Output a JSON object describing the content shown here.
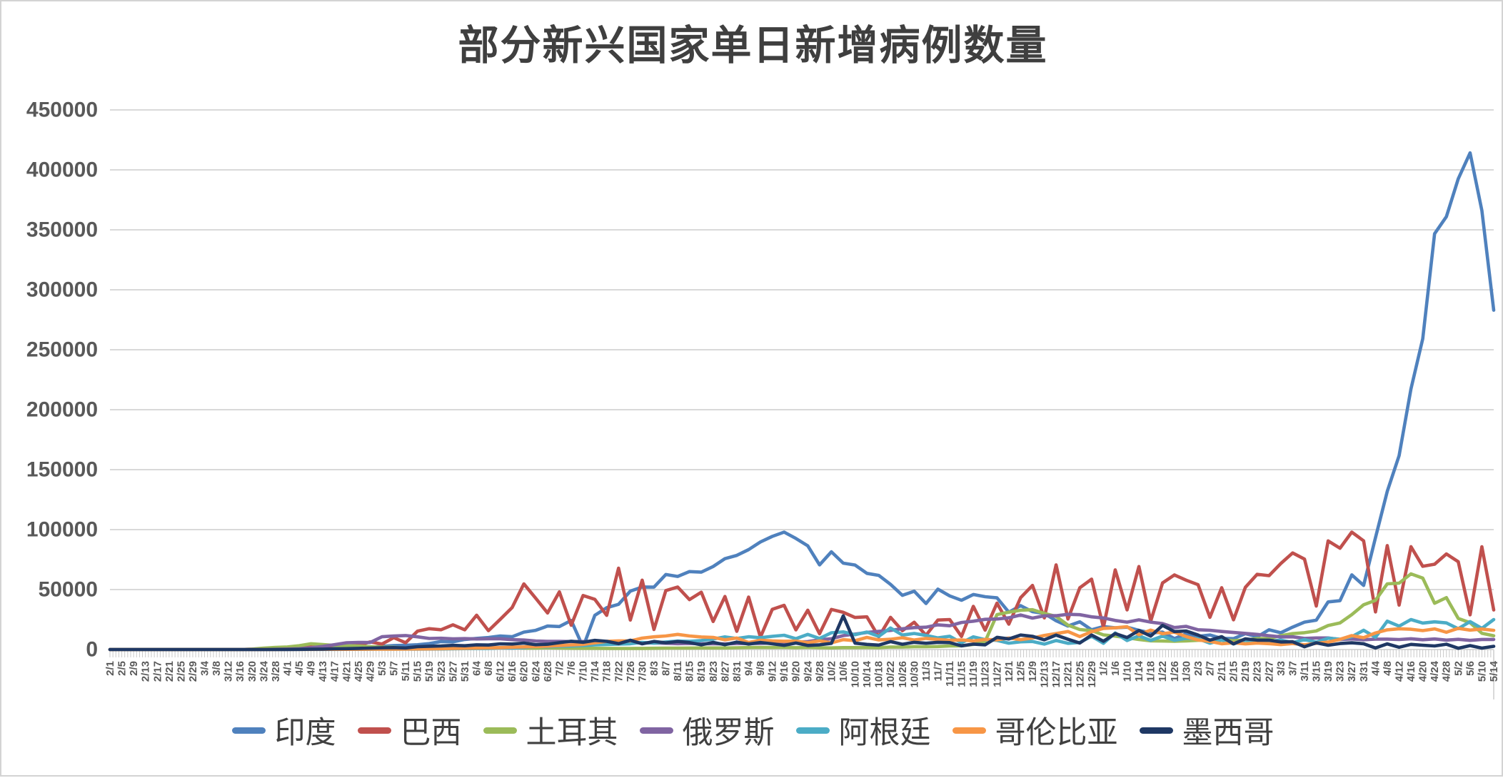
{
  "title": "部分新兴国家单日新增病例数量",
  "y_axis": {
    "ticks": [
      "450000",
      "400000",
      "350000",
      "300000",
      "250000",
      "200000",
      "150000",
      "100000",
      "50000",
      "0"
    ]
  },
  "colors": {
    "grid": "#D9D9D9",
    "tick": "#C9C9C9",
    "axis_text": "#595959"
  },
  "chart_data": {
    "type": "line",
    "title": "部分新兴国家单日新增病例数量",
    "xlabel": "",
    "ylabel": "",
    "ylim": [
      0,
      450000
    ],
    "y_step": 50000,
    "grid": true,
    "legend_position": "bottom",
    "x_labels": [
      "2/1",
      "2/5",
      "2/9",
      "2/13",
      "2/17",
      "2/21",
      "2/25",
      "2/29",
      "3/4",
      "3/8",
      "3/12",
      "3/16",
      "3/20",
      "3/24",
      "3/28",
      "4/1",
      "4/5",
      "4/9",
      "4/13",
      "4/17",
      "4/21",
      "4/25",
      "4/29",
      "5/3",
      "5/7",
      "5/11",
      "5/15",
      "5/19",
      "5/23",
      "5/27",
      "5/31",
      "6/4",
      "6/8",
      "6/12",
      "6/16",
      "6/20",
      "6/24",
      "6/28",
      "7/2",
      "7/6",
      "7/10",
      "7/14",
      "7/18",
      "7/22",
      "7/26",
      "7/30",
      "8/3",
      "8/7",
      "8/11",
      "8/15",
      "8/19",
      "8/23",
      "8/27",
      "8/31",
      "9/4",
      "9/8",
      "9/12",
      "9/16",
      "9/20",
      "9/24",
      "9/28",
      "10/2",
      "10/6",
      "10/10",
      "10/14",
      "10/18",
      "10/22",
      "10/26",
      "10/30",
      "11/3",
      "11/7",
      "11/11",
      "11/15",
      "11/19",
      "11/23",
      "11/27",
      "12/1",
      "12/5",
      "12/9",
      "12/13",
      "12/17",
      "12/21",
      "12/25",
      "12/29",
      "1/2",
      "1/6",
      "1/10",
      "1/14",
      "1/18",
      "1/22",
      "1/26",
      "1/30",
      "2/3",
      "2/7",
      "2/11",
      "2/15",
      "2/19",
      "2/23",
      "2/27",
      "3/3",
      "3/7",
      "3/11",
      "3/15",
      "3/19",
      "3/23",
      "3/27",
      "3/31",
      "4/4",
      "4/8",
      "4/12",
      "4/16",
      "4/20",
      "4/24",
      "4/28",
      "5/2",
      "5/6",
      "5/10",
      "5/14"
    ],
    "series": [
      {
        "name": "印度",
        "color": "#4F81BD",
        "values": [
          0,
          0,
          0,
          0,
          0,
          0,
          1,
          2,
          5,
          5,
          10,
          20,
          60,
          100,
          150,
          400,
          700,
          850,
          1250,
          1100,
          1540,
          1840,
          1900,
          2600,
          3340,
          3600,
          3970,
          4970,
          6660,
          6390,
          8380,
          9300,
          9990,
          11300,
          10670,
          14520,
          16000,
          19600,
          19150,
          24250,
          2000,
          28500,
          34900,
          37700,
          48700,
          52120,
          52050,
          62540,
          60960,
          65000,
          64530,
          69240,
          75760,
          78510,
          83340,
          89710,
          94370,
          97890,
          92600,
          86510,
          70590,
          81480,
          72050,
          70500,
          63510,
          61870,
          54370,
          45150,
          48650,
          38310,
          50360,
          44680,
          41100,
          45880,
          44060,
          43080,
          31120,
          36590,
          31520,
          30050,
          24010,
          19560,
          23070,
          16430,
          19080,
          18090,
          18650,
          16000,
          13790,
          14540,
          9100,
          13080,
          11040,
          12140,
          9310,
          9120,
          13190,
          10580,
          16490,
          14000,
          18710,
          22850,
          24440,
          39730,
          40710,
          62260,
          53480,
          93250,
          131900,
          161740,
          217350,
          259170,
          346790,
          360960,
          392490,
          414190,
          366160,
          283000
        ]
      },
      {
        "name": "巴西",
        "color": "#C0504D",
        "values": [
          0,
          0,
          0,
          0,
          0,
          0,
          0,
          0,
          0,
          20,
          30,
          30,
          300,
          310,
          500,
          1120,
          1220,
          2210,
          1260,
          3700,
          2500,
          3500,
          6300,
          4600,
          9890,
          5630,
          15300,
          17400,
          16500,
          20600,
          16400,
          28630,
          15700,
          25180,
          34920,
          54770,
          42730,
          30480,
          48100,
          20230,
          45050,
          41860,
          28530,
          67860,
          24580,
          57840,
          16640,
          49180,
          52160,
          41580,
          47780,
          23420,
          44240,
          15190,
          43770,
          10270,
          33520,
          36820,
          16390,
          32810,
          13160,
          33430,
          31000,
          26750,
          27240,
          10580,
          26870,
          15730,
          22720,
          11840,
          24610,
          25010,
          10880,
          36000,
          16210,
          38670,
          21140,
          43210,
          53450,
          26360,
          70570,
          25440,
          51490,
          58720,
          18480,
          66400,
          33040,
          69200,
          23670,
          55560,
          62230,
          57790,
          54100,
          26840,
          51550,
          24760,
          51880,
          62720,
          61600,
          71700,
          80510,
          75410,
          36240,
          90570,
          84490,
          97900,
          90640,
          31360,
          86650,
          37010,
          85770,
          69380,
          71130,
          79730,
          73300,
          28930,
          85700,
          33000
        ]
      },
      {
        "name": "土耳其",
        "color": "#9BBB59",
        "values": [
          0,
          0,
          0,
          0,
          0,
          0,
          0,
          0,
          0,
          0,
          1,
          20,
          360,
          1200,
          1700,
          2150,
          3130,
          4800,
          4100,
          3370,
          3080,
          2860,
          2390,
          1980,
          1850,
          1110,
          1640,
          970,
          1190,
          1040,
          840,
          990,
          990,
          1460,
          1470,
          1250,
          1270,
          1350,
          1190,
          1090,
          1000,
          990,
          930,
          900,
          920,
          980,
          1080,
          1190,
          1180,
          1230,
          1300,
          1310,
          1310,
          1480,
          1640,
          1760,
          1670,
          1770,
          1520,
          1770,
          1510,
          1390,
          1610,
          1580,
          1690,
          1560,
          2100,
          2010,
          2300,
          2340,
          2510,
          3000,
          3080,
          4200,
          6710,
          29130,
          31210,
          32740,
          33200,
          30110,
          27610,
          20320,
          16640,
          15800,
          12200,
          11180,
          9810,
          8310,
          7280,
          7100,
          6930,
          7210,
          7660,
          7940,
          8000,
          7300,
          8000,
          9110,
          9200,
          11520,
          13300,
          14050,
          15500,
          20000,
          22220,
          29100,
          37300,
          41000,
          54740,
          55330,
          63080,
          59600,
          38550,
          43300,
          25980,
          22390,
          13600,
          11500
        ]
      },
      {
        "name": "俄罗斯",
        "color": "#8064A2",
        "values": [
          0,
          0,
          0,
          0,
          0,
          0,
          0,
          0,
          0,
          0,
          5,
          30,
          50,
          70,
          150,
          440,
          660,
          1460,
          2560,
          4070,
          5640,
          5960,
          5840,
          10630,
          11230,
          11660,
          10600,
          9200,
          9430,
          8920,
          9090,
          8830,
          8990,
          8990,
          8200,
          7900,
          7170,
          6800,
          6760,
          6610,
          6640,
          6540,
          6110,
          5850,
          5780,
          5510,
          5390,
          5240,
          4890,
          5060,
          4790,
          4850,
          4710,
          4980,
          5010,
          5100,
          5450,
          5670,
          6150,
          6600,
          8130,
          9000,
          11620,
          12850,
          14230,
          15100,
          15970,
          17350,
          18280,
          18650,
          20580,
          19850,
          22570,
          23610,
          25170,
          25490,
          26400,
          28780,
          26190,
          28080,
          28210,
          29350,
          29020,
          27250,
          26300,
          24250,
          22850,
          24760,
          22860,
          21600,
          18340,
          19290,
          16470,
          16050,
          15040,
          14210,
          13430,
          12600,
          11530,
          10540,
          10600,
          9300,
          9650,
          9630,
          8370,
          8790,
          8160,
          8640,
          8700,
          8330,
          8990,
          8160,
          8830,
          7860,
          8540,
          7600,
          8420,
          8380
        ]
      },
      {
        "name": "阿根廷",
        "color": "#4BACC6",
        "values": [
          0,
          0,
          0,
          0,
          0,
          0,
          0,
          0,
          0,
          0,
          2,
          5,
          10,
          30,
          60,
          90,
          110,
          120,
          130,
          140,
          150,
          170,
          200,
          230,
          260,
          280,
          350,
          420,
          500,
          600,
          780,
          900,
          1000,
          1390,
          1200,
          1630,
          2600,
          2300,
          2740,
          2900,
          3360,
          3900,
          4250,
          4500,
          4800,
          5930,
          5300,
          6300,
          7000,
          6800,
          7500,
          8700,
          10550,
          9230,
          10680,
          9900,
          11000,
          11900,
          9060,
          12600,
          9200,
          14000,
          14700,
          12400,
          14600,
          11000,
          18000,
          12100,
          13400,
          11800,
          9700,
          11100,
          5600,
          10600,
          8300,
          7600,
          5300,
          6400,
          6700,
          4500,
          7500,
          5200,
          5900,
          11100,
          5200,
          13800,
          7500,
          11400,
          7600,
          11200,
          7700,
          9400,
          8900,
          5300,
          8000,
          4700,
          7700,
          6000,
          6600,
          7900,
          5700,
          8300,
          6100,
          9400,
          8600,
          10700,
          16100,
          10150,
          23680,
          19440,
          24990,
          22060,
          23100,
          22200,
          17380,
          23290,
          17590,
          25000
        ]
      },
      {
        "name": "哥伦比亚",
        "color": "#F79646",
        "values": [
          0,
          0,
          0,
          0,
          0,
          0,
          0,
          0,
          0,
          0,
          1,
          5,
          10,
          30,
          60,
          90,
          110,
          130,
          150,
          170,
          200,
          230,
          280,
          320,
          360,
          400,
          450,
          550,
          700,
          900,
          1100,
          1300,
          1400,
          1600,
          1900,
          2200,
          2500,
          2800,
          3300,
          3800,
          4200,
          5600,
          6800,
          7200,
          7200,
          9500,
          10600,
          11300,
          12600,
          11300,
          10500,
          10100,
          8100,
          9600,
          5900,
          7800,
          7200,
          6900,
          7000,
          5700,
          7200,
          5600,
          8200,
          7400,
          10100,
          8000,
          8600,
          9800,
          7900,
          9300,
          8400,
          7700,
          8000,
          7200,
          8400,
          8100,
          9600,
          8200,
          9600,
          11700,
          13300,
          15000,
          10800,
          14900,
          17600,
          18100,
          19000,
          12400,
          16200,
          13200,
          14500,
          10800,
          8000,
          6800,
          4800,
          5600,
          4700,
          5400,
          4900,
          4100,
          5000,
          3900,
          5200,
          6200,
          8500,
          11600,
          9900,
          13800,
          16400,
          17300,
          16900,
          15800,
          17200,
          14400,
          17700,
          16200,
          17100,
          16000
        ]
      },
      {
        "name": "墨西哥",
        "color": "#1F3864",
        "values": [
          0,
          0,
          0,
          0,
          0,
          0,
          0,
          0,
          0,
          0,
          2,
          5,
          10,
          20,
          40,
          80,
          120,
          260,
          380,
          580,
          730,
          970,
          1200,
          1430,
          1610,
          1300,
          2400,
          2710,
          2960,
          3460,
          3150,
          3910,
          3750,
          4790,
          4600,
          5340,
          4050,
          4400,
          5700,
          6900,
          6100,
          7620,
          6840,
          4900,
          7730,
          4750,
          6740,
          5600,
          6690,
          5830,
          3900,
          5930,
          4060,
          6200,
          4600,
          5900,
          4770,
          3540,
          5400,
          3400,
          3900,
          5100,
          28110,
          5300,
          4300,
          3700,
          6600,
          4400,
          6000,
          5250,
          6000,
          5750,
          3100,
          4500,
          3900,
          10200,
          8800,
          12100,
          11000,
          8100,
          12000,
          8600,
          5400,
          12100,
          6900,
          13300,
          10000,
          15900,
          11200,
          20100,
          15000,
          15400,
          12100,
          7800,
          10700,
          4700,
          8900,
          7800,
          7800,
          6300,
          6500,
          2300,
          5600,
          3600,
          5000,
          5600,
          4800,
          1300,
          4700,
          1900,
          4300,
          3600,
          3000,
          4400,
          1100,
          3300,
          1200,
          2700
        ]
      }
    ]
  }
}
